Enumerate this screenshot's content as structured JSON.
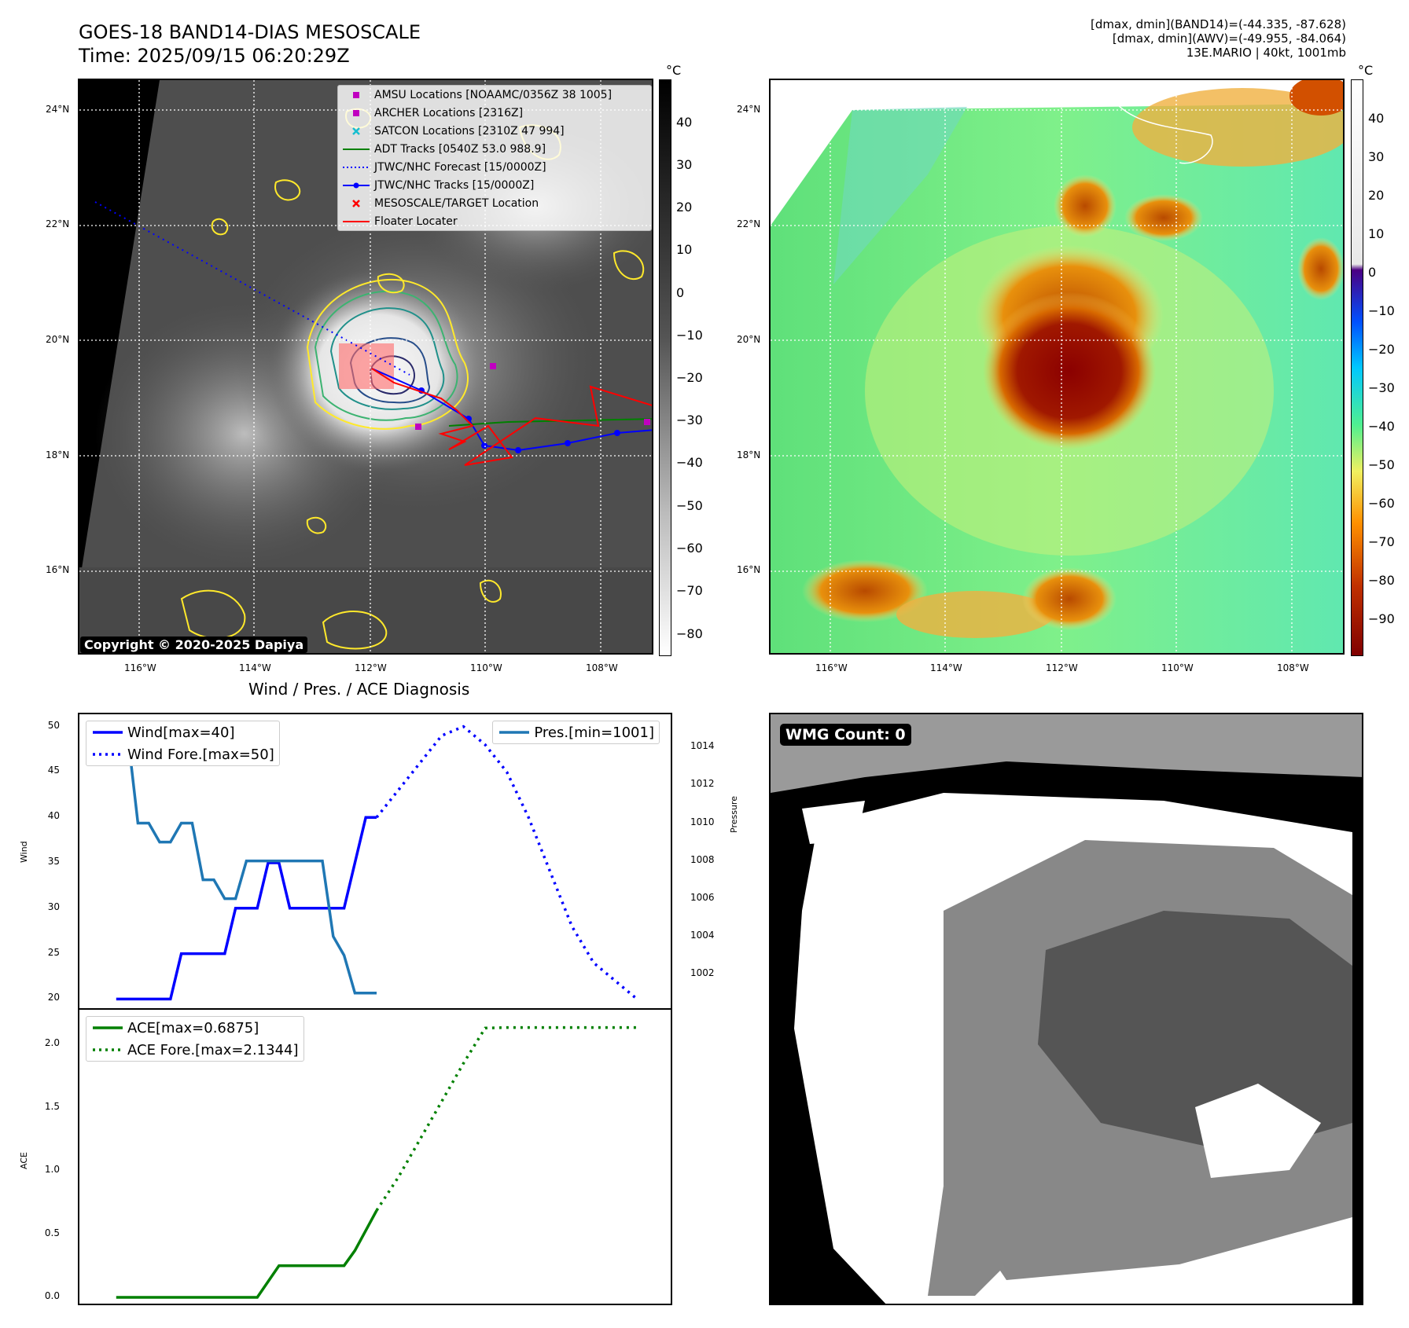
{
  "header": {
    "title_line1": "GOES-18 BAND14-DIAS MESOSCALE",
    "title_line2": "Time: 2025/09/15 06:20:29Z",
    "right_line1": "[dmax, dmin](BAND14)=(-44.335, -87.628)",
    "right_line2": "[dmax, dmin](AWV)=(-49.955, -84.064)",
    "right_line3": "13E.MARIO | 40kt, 1001mb"
  },
  "map": {
    "lat_labels": [
      "24°N",
      "22°N",
      "20°N",
      "18°N",
      "16°N"
    ],
    "lon_labels": [
      "116°W",
      "114°W",
      "112°W",
      "110°W",
      "108°W"
    ],
    "copyright": "Copyright © 2020-2025 Dapiya"
  },
  "colorbar_left": {
    "unit": "°C",
    "ticks": [
      "40",
      "30",
      "20",
      "10",
      "0",
      "−10",
      "−20",
      "−30",
      "−40",
      "−50",
      "−60",
      "−70",
      "−80"
    ]
  },
  "colorbar_right": {
    "unit": "°C",
    "ticks": [
      "40",
      "30",
      "20",
      "10",
      "0",
      "−10",
      "−20",
      "−30",
      "−40",
      "−50",
      "−60",
      "−70",
      "−80",
      "−90"
    ]
  },
  "legend": {
    "items": [
      {
        "label": "AMSU Locations [NOAAMC/0356Z 38 1005]",
        "color": "#c000c0",
        "kind": "square"
      },
      {
        "label": "ARCHER Locations [2316Z]",
        "color": "#c000c0",
        "kind": "square"
      },
      {
        "label": "SATCON Locations [2310Z 47 994]",
        "color": "#17becf",
        "kind": "x"
      },
      {
        "label": "ADT Tracks [0540Z 53.0 988.9]",
        "color": "#008000",
        "kind": "line"
      },
      {
        "label": "JTWC/NHC Forecast [15/0000Z]",
        "color": "#0000ff",
        "kind": "dotted"
      },
      {
        "label": "JTWC/NHC Tracks [15/0000Z]",
        "color": "#0000ff",
        "kind": "line-dot"
      },
      {
        "label": "MESOSCALE/TARGET Location",
        "color": "#ff0000",
        "kind": "x"
      },
      {
        "label": "Floater Locater",
        "color": "#ff0000",
        "kind": "line"
      }
    ]
  },
  "diagnosis": {
    "title": "Wind / Pres. / ACE Diagnosis",
    "wind_axis_label": "Wind",
    "pressure_axis_label": "Pressure",
    "ace_axis_label": "ACE",
    "legend_wind": "Wind[max=40]",
    "legend_wind_fore": "Wind Fore.[max=50]",
    "legend_pres": "Pres.[min=1001]",
    "legend_ace": "ACE[max=0.6875]",
    "legend_ace_fore": "ACE Fore.[max=2.1344]"
  },
  "wmg": {
    "label": "WMG Count: 0"
  },
  "chart_data": [
    {
      "type": "line",
      "title": "Wind / Pres. / ACE Diagnosis",
      "ylabel": "Wind",
      "ylim": [
        19,
        51
      ],
      "yticks": [
        20,
        25,
        30,
        35,
        40,
        45,
        50
      ],
      "series": [
        {
          "name": "Wind[max=40]",
          "style": "solid",
          "color": "#0000ff",
          "x": [
            0,
            1,
            2,
            3,
            4,
            5,
            6,
            7,
            8,
            9,
            10,
            11,
            12,
            13,
            14,
            15,
            16,
            17,
            18,
            19,
            20,
            21,
            22,
            23,
            24
          ],
          "values": [
            20,
            20,
            20,
            20,
            20,
            20,
            25,
            25,
            25,
            25,
            25,
            30,
            30,
            30,
            35,
            35,
            30,
            30,
            30,
            30,
            30,
            30,
            35,
            40,
            40
          ]
        },
        {
          "name": "Wind Fore.[max=50]",
          "style": "dotted",
          "color": "#0000ff",
          "x": [
            24,
            26,
            28,
            30,
            32,
            34,
            36,
            38,
            40,
            42,
            44,
            48
          ],
          "values": [
            40,
            43,
            46,
            49,
            50,
            48,
            45,
            40,
            34,
            28,
            24,
            20
          ]
        }
      ]
    },
    {
      "type": "line",
      "ylabel": "Pressure",
      "ylim": [
        1000.2,
        1015.6
      ],
      "yticks": [
        1002,
        1004,
        1006,
        1008,
        1010,
        1012,
        1014
      ],
      "series": [
        {
          "name": "Pres.[min=1001]",
          "style": "solid",
          "color": "#1f77b4",
          "x": [
            0,
            1,
            2,
            3,
            4,
            5,
            6,
            7,
            8,
            9,
            10,
            11,
            12,
            13,
            14,
            15,
            16,
            17,
            18,
            19,
            20,
            21,
            22,
            23,
            24
          ],
          "values": [
            1015,
            1015,
            1010,
            1010,
            1009,
            1009,
            1010,
            1010,
            1007,
            1007,
            1006,
            1006,
            1008,
            1008,
            1008,
            1008,
            1008,
            1008,
            1008,
            1008,
            1004,
            1003,
            1001,
            1001,
            1001
          ]
        }
      ]
    },
    {
      "type": "line",
      "ylabel": "ACE",
      "ylim": [
        -0.05,
        2.25
      ],
      "yticks": [
        0.0,
        0.5,
        1.0,
        1.5,
        2.0
      ],
      "series": [
        {
          "name": "ACE[max=0.6875]",
          "style": "solid",
          "color": "#008000",
          "x": [
            0,
            13,
            15,
            21,
            22,
            24
          ],
          "values": [
            0.0,
            0.0,
            0.25,
            0.25,
            0.37,
            0.6875
          ]
        },
        {
          "name": "ACE Fore.[max=2.1344]",
          "style": "dotted",
          "color": "#008000",
          "x": [
            24,
            26,
            28,
            30,
            32,
            34,
            36,
            40,
            48
          ],
          "values": [
            0.6875,
            0.95,
            1.25,
            1.55,
            1.85,
            2.13,
            2.1344,
            2.1344,
            2.1344
          ]
        }
      ]
    }
  ]
}
